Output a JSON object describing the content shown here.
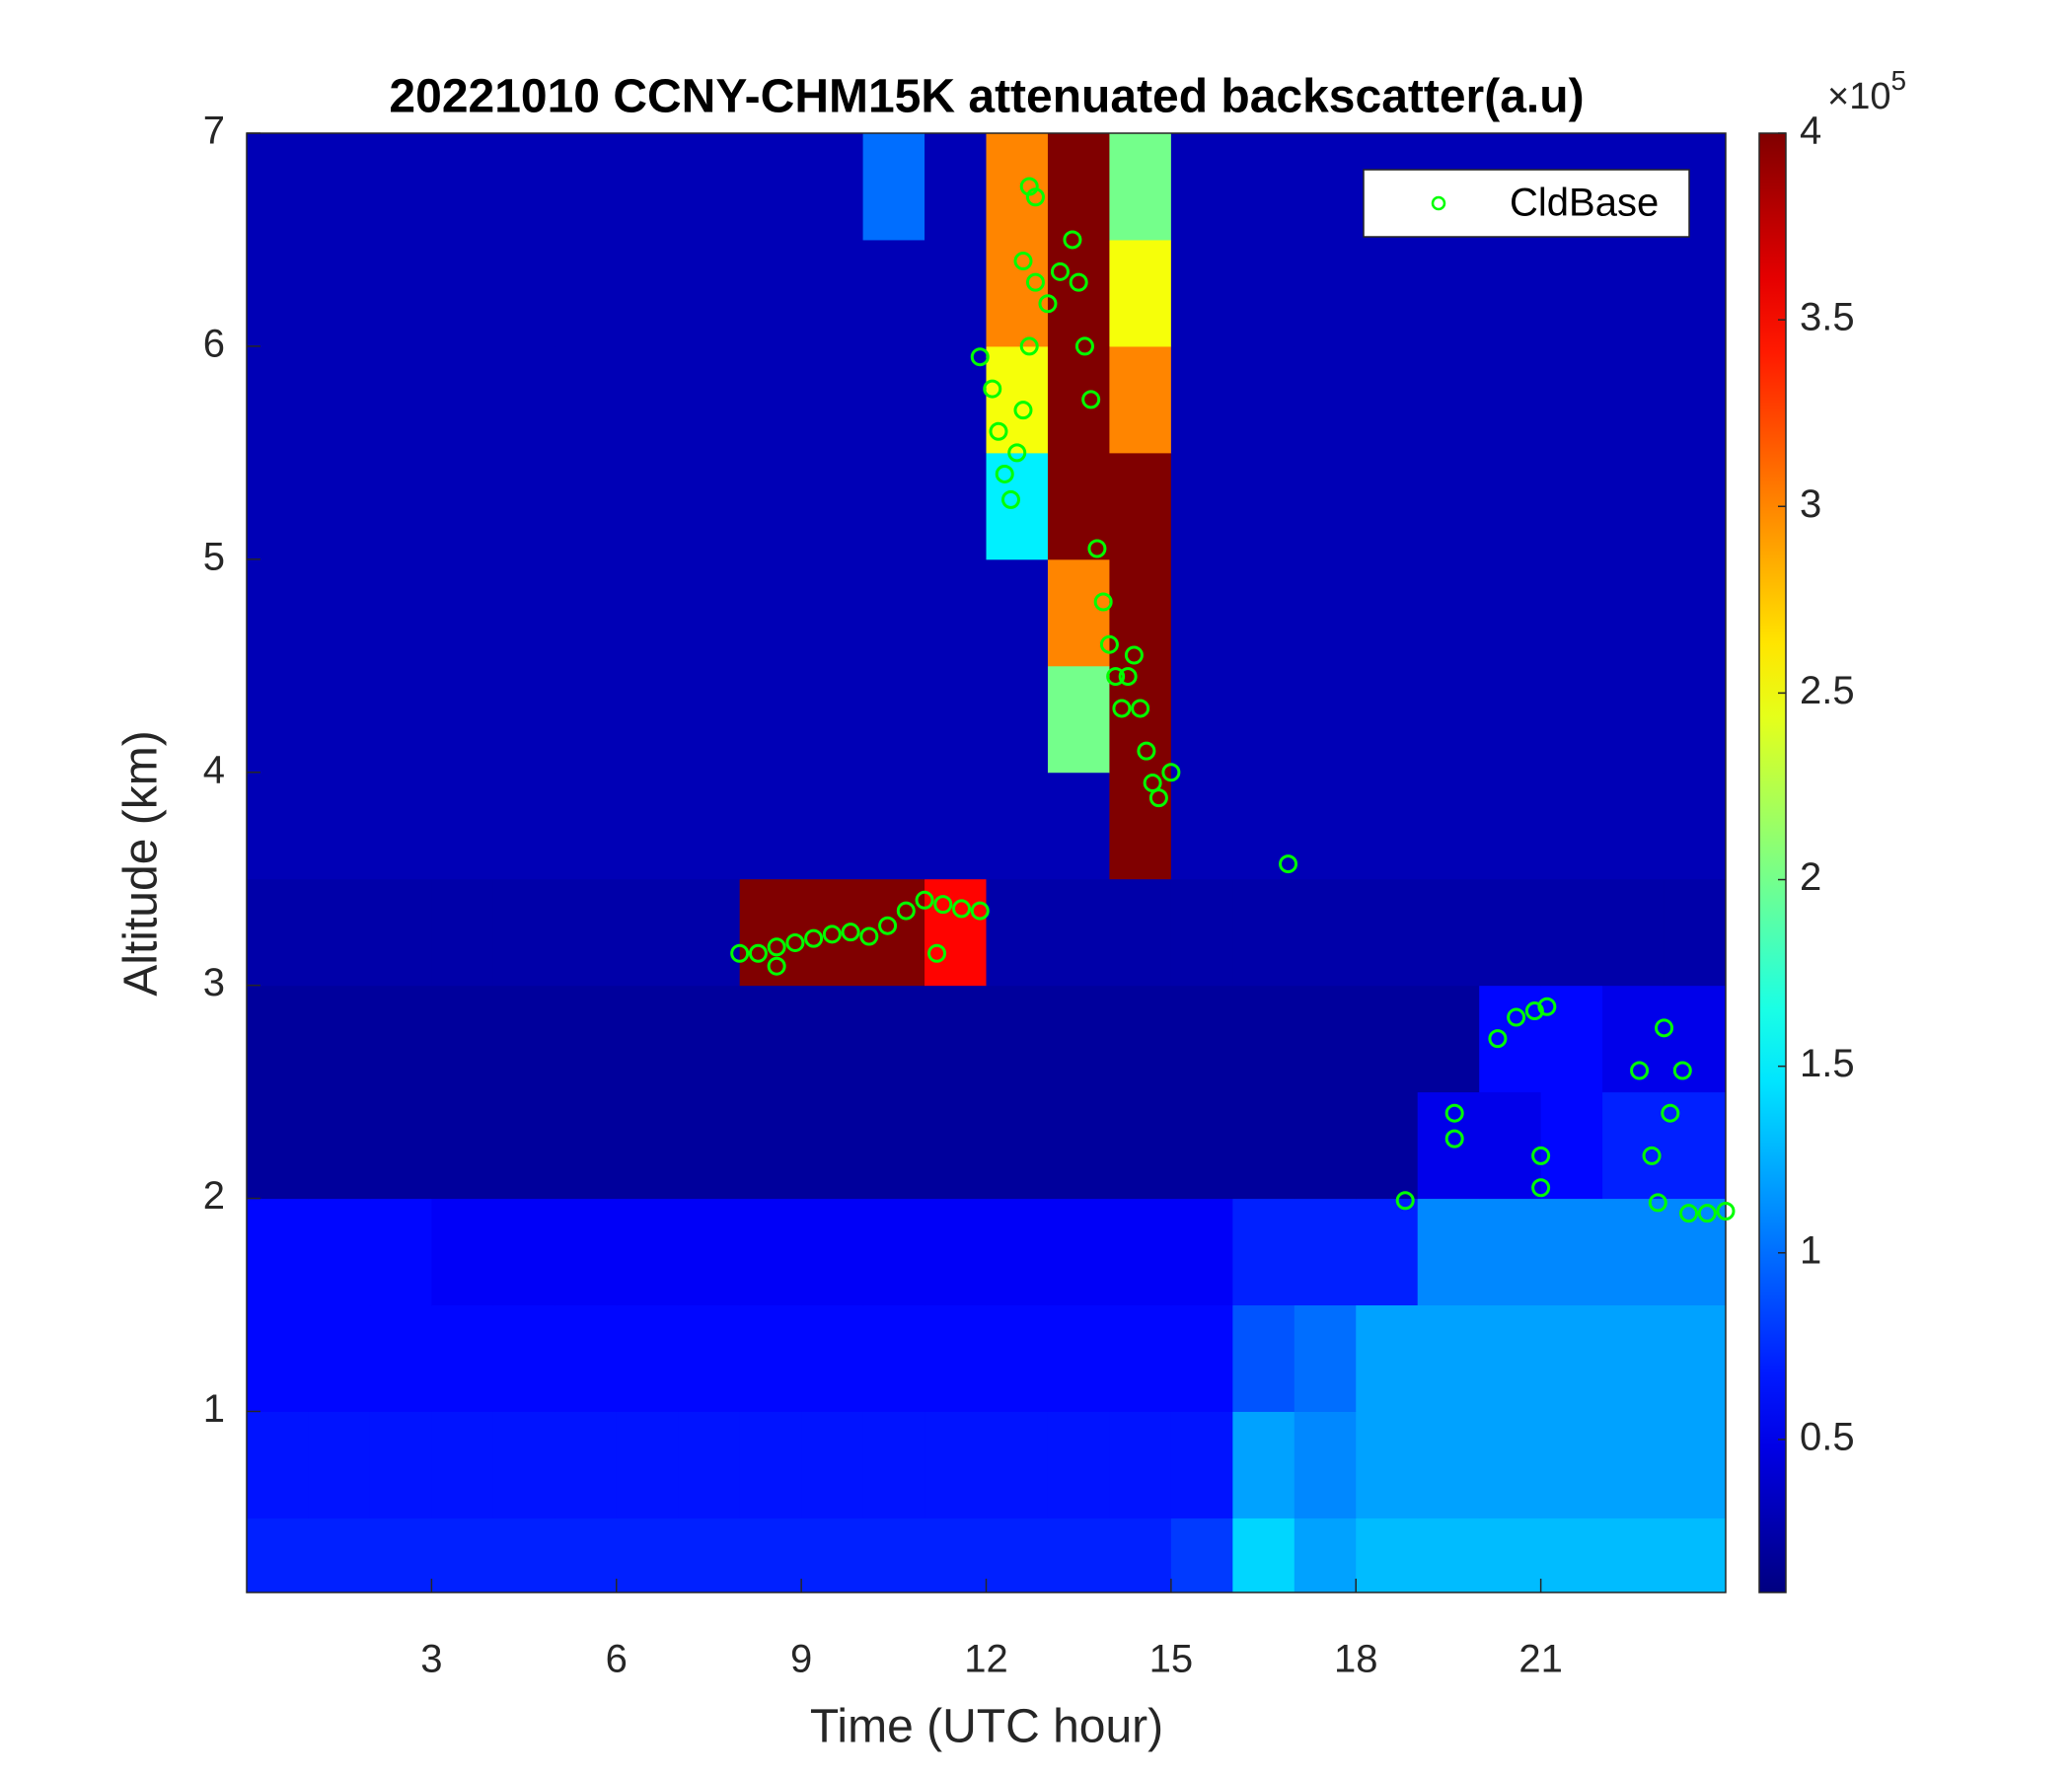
{
  "chart_data": {
    "type": "heatmap",
    "title": "20221010 CCNY-CHM15K attenuated backscatter(a.u)",
    "xlabel": "Time (UTC hour)",
    "ylabel": "Altitude (km)",
    "xlim": [
      0,
      24
    ],
    "xticks": [
      3,
      6,
      9,
      12,
      15,
      18,
      21
    ],
    "ylim": [
      0.15,
      7
    ],
    "yticks": [
      1,
      2,
      3,
      4,
      5,
      6,
      7
    ],
    "x_edges": [
      0,
      1,
      2,
      3,
      4,
      5,
      6,
      7,
      8,
      9,
      10,
      11,
      12,
      13,
      14,
      15,
      16,
      17,
      18,
      19,
      20,
      21,
      22,
      23,
      24
    ],
    "y_edges": [
      0.15,
      0.5,
      1,
      1.5,
      2,
      2.5,
      3,
      3.5,
      4,
      4.5,
      5,
      5.5,
      6,
      6.5,
      7
    ],
    "z": [
      [
        0.7,
        0.7,
        0.7,
        0.7,
        0.7,
        0.7,
        0.7,
        0.7,
        0.7,
        0.7,
        0.7,
        0.7,
        0.7,
        0.7,
        0.7,
        0.8,
        1.4,
        1.2,
        1.3,
        1.3,
        1.3,
        1.3,
        1.3,
        1.3
      ],
      [
        0.65,
        0.65,
        0.65,
        0.65,
        0.65,
        0.65,
        0.65,
        0.65,
        0.65,
        0.65,
        0.65,
        0.65,
        0.65,
        0.65,
        0.65,
        0.65,
        1.2,
        1.1,
        1.2,
        1.2,
        1.2,
        1.2,
        1.2,
        1.2
      ],
      [
        0.6,
        0.6,
        0.6,
        0.6,
        0.6,
        0.6,
        0.6,
        0.6,
        0.6,
        0.6,
        0.6,
        0.6,
        0.6,
        0.6,
        0.6,
        0.6,
        0.9,
        1.0,
        1.2,
        1.2,
        1.2,
        1.2,
        1.2,
        1.2
      ],
      [
        0.6,
        0.6,
        0.6,
        0.55,
        0.55,
        0.55,
        0.55,
        0.55,
        0.55,
        0.55,
        0.55,
        0.55,
        0.55,
        0.55,
        0.55,
        0.55,
        0.7,
        0.7,
        0.7,
        1.1,
        1.1,
        1.1,
        1.1,
        1.1
      ],
      [
        0.2,
        0.2,
        0.2,
        0.2,
        0.2,
        0.2,
        0.2,
        0.2,
        0.2,
        0.2,
        0.2,
        0.2,
        0.2,
        0.2,
        0.2,
        0.2,
        0.2,
        0.2,
        0.2,
        0.5,
        0.5,
        0.6,
        0.7,
        0.7
      ],
      [
        0.2,
        0.2,
        0.2,
        0.2,
        0.2,
        0.2,
        0.2,
        0.2,
        0.2,
        0.2,
        0.2,
        0.2,
        0.2,
        0.2,
        0.2,
        0.2,
        0.2,
        0.2,
        0.2,
        0.2,
        0.6,
        0.6,
        0.5,
        0.5
      ],
      [
        0.25,
        0.25,
        0.25,
        0.25,
        0.25,
        0.25,
        0.25,
        0.25,
        4,
        4,
        4,
        3.5,
        0.25,
        0.25,
        0.25,
        0.25,
        0.25,
        0.25,
        0.25,
        0.25,
        0.25,
        0.25,
        0.25,
        0.25
      ],
      [
        0.3,
        0.3,
        0.3,
        0.3,
        0.3,
        0.3,
        0.3,
        0.3,
        0.3,
        0.3,
        0.3,
        0.3,
        0.3,
        0.3,
        4,
        0.3,
        0.3,
        0.3,
        0.3,
        0.3,
        0.3,
        0.3,
        0.3,
        0.3
      ],
      [
        0.3,
        0.3,
        0.3,
        0.3,
        0.3,
        0.3,
        0.3,
        0.3,
        0.3,
        0.3,
        0.3,
        0.3,
        0.3,
        2.0,
        4,
        0.3,
        0.3,
        0.3,
        0.3,
        0.3,
        0.3,
        0.3,
        0.3,
        0.3
      ],
      [
        0.3,
        0.3,
        0.3,
        0.3,
        0.3,
        0.3,
        0.3,
        0.3,
        0.3,
        0.3,
        0.3,
        0.3,
        0.3,
        3,
        4,
        0.3,
        0.3,
        0.3,
        0.3,
        0.3,
        0.3,
        0.3,
        0.3,
        0.3
      ],
      [
        0.3,
        0.3,
        0.3,
        0.3,
        0.3,
        0.3,
        0.3,
        0.3,
        0.3,
        0.3,
        0.3,
        0.3,
        1.5,
        4,
        4,
        0.3,
        0.3,
        0.3,
        0.3,
        0.3,
        0.3,
        0.3,
        0.3,
        0.3
      ],
      [
        0.3,
        0.3,
        0.3,
        0.3,
        0.3,
        0.3,
        0.3,
        0.3,
        0.3,
        0.3,
        0.3,
        0.3,
        2.5,
        4,
        3,
        0.3,
        0.3,
        0.3,
        0.3,
        0.3,
        0.3,
        0.3,
        0.3,
        0.3
      ],
      [
        0.3,
        0.3,
        0.3,
        0.3,
        0.3,
        0.3,
        0.3,
        0.3,
        0.3,
        0.3,
        0.3,
        0.3,
        3,
        4,
        2.5,
        0.3,
        0.3,
        0.3,
        0.3,
        0.3,
        0.3,
        0.3,
        0.3,
        0.3
      ],
      [
        0.3,
        0.3,
        0.3,
        0.3,
        0.3,
        0.3,
        0.3,
        0.3,
        0.3,
        0.3,
        1.0,
        0.3,
        3,
        4,
        2,
        0.3,
        0.3,
        0.3,
        0.3,
        0.3,
        0.3,
        0.3,
        0.3,
        0.3
      ]
    ],
    "colormap": "jet",
    "clim": [
      0.09,
      4
    ],
    "colorbar_ticks": [
      0.5,
      1,
      1.5,
      2,
      2.5,
      3,
      3.5,
      4
    ],
    "colorbar_multiplier": "×10",
    "colorbar_exponent": "5",
    "legend": "northeast",
    "series": [
      {
        "name": "CldBase",
        "color": "#00ff00",
        "x": [
          8.0,
          8.3,
          8.6,
          8.9,
          9.2,
          9.5,
          9.8,
          10.1,
          10.4,
          10.7,
          11.0,
          11.3,
          11.6,
          11.9,
          11.2,
          8.6,
          11.9,
          12.1,
          12.2,
          12.3,
          12.4,
          12.5,
          12.6,
          12.7,
          12.8,
          12.6,
          12.7,
          12.8,
          13.0,
          13.2,
          13.4,
          13.5,
          13.6,
          13.7,
          13.8,
          13.9,
          14.0,
          14.1,
          14.2,
          14.3,
          14.4,
          14.5,
          14.6,
          14.7,
          14.8,
          15.0,
          16.9,
          18.8,
          19.6,
          19.6,
          20.3,
          20.6,
          20.9,
          21.1,
          21.0,
          21.0,
          22.6,
          22.8,
          22.9,
          23.0,
          23.1,
          23.3,
          23.4,
          23.7,
          24.0
        ],
        "y": [
          3.15,
          3.15,
          3.18,
          3.2,
          3.22,
          3.24,
          3.25,
          3.23,
          3.28,
          3.35,
          3.4,
          3.38,
          3.36,
          3.35,
          3.15,
          3.09,
          5.95,
          5.8,
          5.6,
          5.4,
          5.28,
          5.5,
          5.7,
          6.0,
          6.3,
          6.4,
          6.75,
          6.7,
          6.2,
          6.35,
          6.5,
          6.3,
          6.0,
          5.75,
          5.05,
          4.8,
          4.6,
          4.45,
          4.3,
          4.45,
          4.55,
          4.3,
          4.1,
          3.95,
          3.88,
          4.0,
          3.57,
          1.99,
          2.4,
          2.28,
          2.75,
          2.85,
          2.88,
          2.9,
          2.2,
          2.05,
          2.6,
          2.2,
          1.98,
          2.8,
          2.4,
          2.6,
          1.93,
          1.93,
          1.94
        ]
      }
    ]
  }
}
